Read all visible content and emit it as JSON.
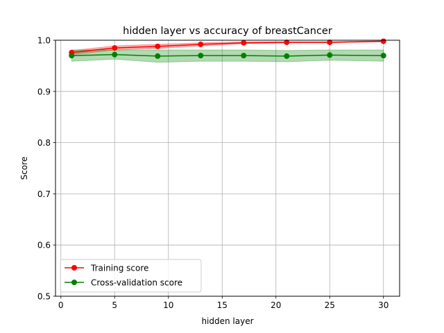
{
  "chart_data": {
    "type": "line",
    "title": "hidden layer vs accuracy of breastCancer",
    "xlabel": "hidden layer",
    "ylabel": "Score",
    "xlim": [
      -0.5,
      31.5
    ],
    "ylim": [
      0.5,
      1.0
    ],
    "grid": true,
    "legend_position": "lower-left",
    "x": [
      1,
      5,
      9,
      13,
      17,
      21,
      25,
      30
    ],
    "xticks": [
      0,
      5,
      10,
      15,
      20,
      25,
      30
    ],
    "yticks": [
      0.5,
      0.6,
      0.7,
      0.8,
      0.9,
      1.0
    ],
    "xtick_labels": [
      "0",
      "5",
      "10",
      "15",
      "20",
      "25",
      "30"
    ],
    "ytick_labels": [
      "0.5",
      "0.6",
      "0.7",
      "0.8",
      "0.9",
      "1.0"
    ],
    "series": [
      {
        "name": "Training score",
        "color": "#ff0000",
        "band_color": "#ff0000",
        "values": [
          0.976,
          0.985,
          0.988,
          0.992,
          0.995,
          0.996,
          0.996,
          0.998
        ],
        "lower": [
          0.972,
          0.981,
          0.984,
          0.989,
          0.993,
          0.995,
          0.995,
          0.997
        ],
        "upper": [
          0.98,
          0.989,
          0.992,
          0.995,
          0.997,
          0.997,
          0.997,
          0.999
        ]
      },
      {
        "name": "Cross-validation score",
        "color": "#008000",
        "band_color": "#008000",
        "values": [
          0.97,
          0.972,
          0.969,
          0.97,
          0.97,
          0.969,
          0.971,
          0.97
        ],
        "lower": [
          0.959,
          0.963,
          0.957,
          0.959,
          0.959,
          0.958,
          0.961,
          0.959
        ],
        "upper": [
          0.981,
          0.981,
          0.981,
          0.981,
          0.981,
          0.98,
          0.981,
          0.981
        ]
      }
    ]
  }
}
